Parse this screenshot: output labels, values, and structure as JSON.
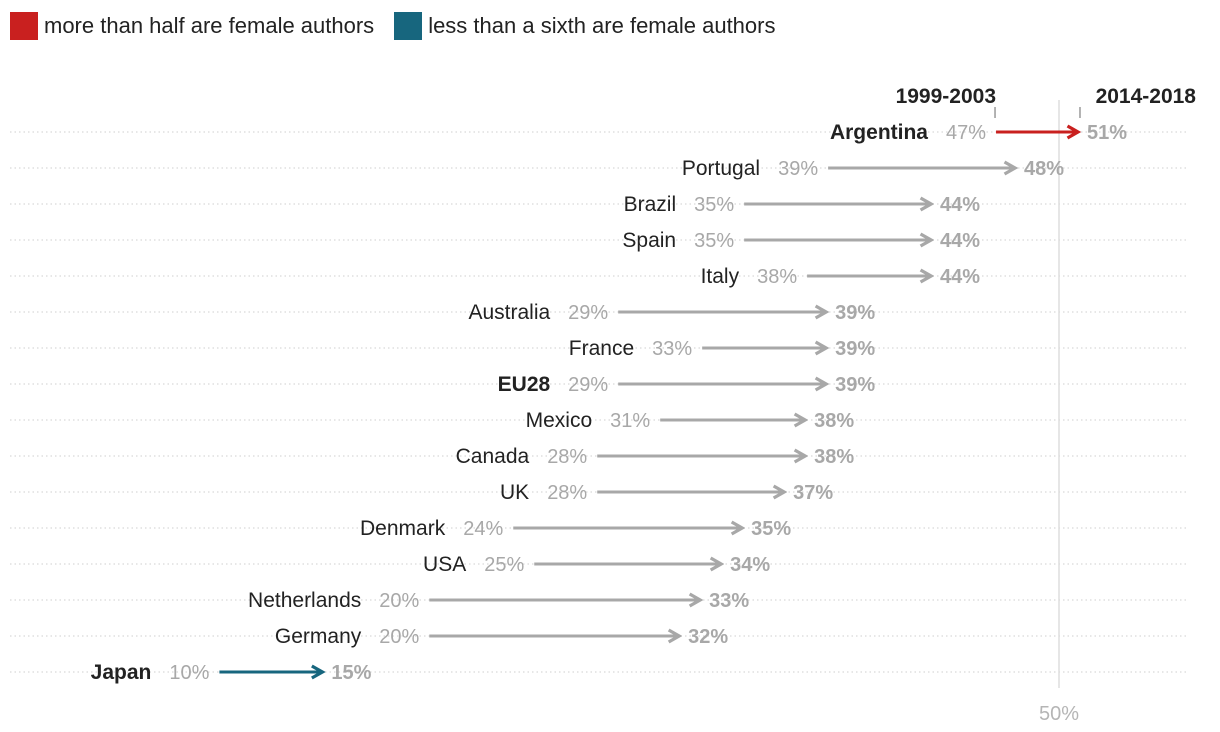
{
  "legend": [
    {
      "label": "more than half are female authors",
      "color": "#c9201f"
    },
    {
      "label": "less than a sixth are female authors",
      "color": "#17667e"
    }
  ],
  "colors": {
    "default": "#a8a8a8",
    "text": "#222222",
    "high": "#c9201f",
    "low": "#17667e",
    "reference": "#b5b5b5"
  },
  "chart_data": {
    "type": "arrow",
    "period_start": "1999-2003",
    "period_end": "2014-2018",
    "reference_line": {
      "value": 50,
      "label": "50%"
    },
    "grid": "dotted horizontal",
    "unit": "%",
    "rows": [
      {
        "country": "Argentina",
        "start": 47,
        "end": 51,
        "start_label": "47%",
        "end_label": "51%",
        "group": "high"
      },
      {
        "country": "Portugal",
        "start": 39,
        "end": 48,
        "start_label": "39%",
        "end_label": "48%",
        "group": "default"
      },
      {
        "country": "Brazil",
        "start": 35,
        "end": 44,
        "start_label": "35%",
        "end_label": "44%",
        "group": "default"
      },
      {
        "country": "Spain",
        "start": 35,
        "end": 44,
        "start_label": "35%",
        "end_label": "44%",
        "group": "default"
      },
      {
        "country": "Italy",
        "start": 38,
        "end": 44,
        "start_label": "38%",
        "end_label": "44%",
        "group": "default"
      },
      {
        "country": "Australia",
        "start": 29,
        "end": 39,
        "start_label": "29%",
        "end_label": "39%",
        "group": "default"
      },
      {
        "country": "France",
        "start": 33,
        "end": 39,
        "start_label": "33%",
        "end_label": "39%",
        "group": "default"
      },
      {
        "country": "EU28",
        "start": 29,
        "end": 39,
        "start_label": "29%",
        "end_label": "39%",
        "group": "default",
        "bold": true
      },
      {
        "country": "Mexico",
        "start": 31,
        "end": 38,
        "start_label": "31%",
        "end_label": "38%",
        "group": "default"
      },
      {
        "country": "Canada",
        "start": 28,
        "end": 38,
        "start_label": "28%",
        "end_label": "38%",
        "group": "default"
      },
      {
        "country": "UK",
        "start": 28,
        "end": 37,
        "start_label": "28%",
        "end_label": "37%",
        "group": "default"
      },
      {
        "country": "Denmark",
        "start": 24,
        "end": 35,
        "start_label": "24%",
        "end_label": "35%",
        "group": "default"
      },
      {
        "country": "USA",
        "start": 25,
        "end": 34,
        "start_label": "25%",
        "end_label": "34%",
        "group": "default"
      },
      {
        "country": "Netherlands",
        "start": 20,
        "end": 33,
        "start_label": "20%",
        "end_label": "33%",
        "group": "default"
      },
      {
        "country": "Germany",
        "start": 20,
        "end": 32,
        "start_label": "20%",
        "end_label": "32%",
        "group": "default"
      },
      {
        "country": "Japan",
        "start": 10,
        "end": 15,
        "start_label": "10%",
        "end_label": "15%",
        "group": "low"
      }
    ]
  }
}
